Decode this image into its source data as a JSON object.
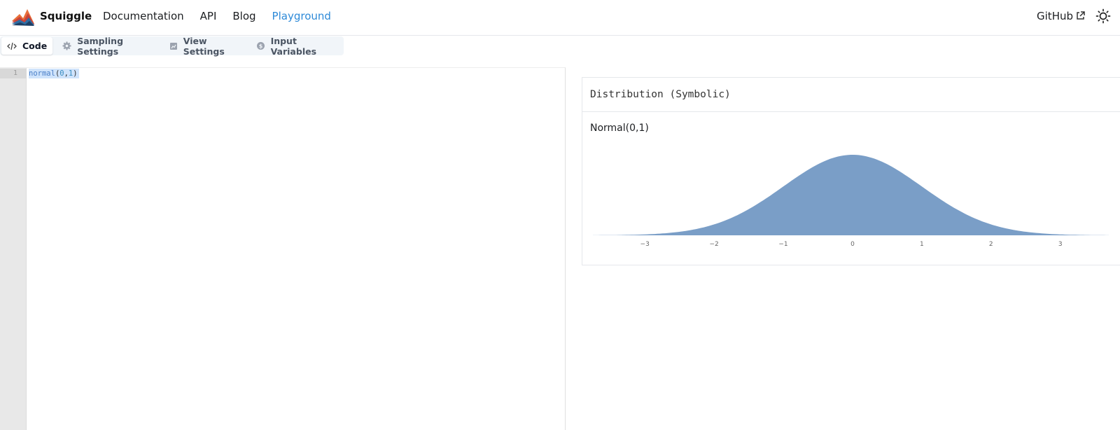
{
  "nav": {
    "brand": "Squiggle",
    "links": [
      "Documentation",
      "API",
      "Blog",
      "Playground"
    ],
    "active_link": "Playground",
    "github": "GitHub"
  },
  "tabs": [
    {
      "label": "Code",
      "icon": "code-icon",
      "active": true
    },
    {
      "label": "Sampling Settings",
      "icon": "gear-icon",
      "active": false
    },
    {
      "label": "View Settings",
      "icon": "chart-icon",
      "active": false
    },
    {
      "label": "Input Variables",
      "icon": "dollar-icon",
      "active": false
    }
  ],
  "editor": {
    "line_number": "1",
    "code": {
      "fn": "normal",
      "open": "(",
      "a": "0",
      "comma": ",",
      "b": "1",
      "close": ")"
    }
  },
  "result": {
    "header": "Distribution (Symbolic)",
    "label": "Normal(0,1)"
  },
  "colors": {
    "accent": "#2e8ad8",
    "distribution_fill": "#7a9ec7"
  },
  "chart_data": {
    "type": "area",
    "distribution": "normal",
    "mean": 0,
    "stdev": 1,
    "x_ticks": [
      "−3",
      "−2",
      "−1",
      "0",
      "1",
      "2",
      "3"
    ],
    "xlim": [
      -3.75,
      3.7
    ]
  }
}
